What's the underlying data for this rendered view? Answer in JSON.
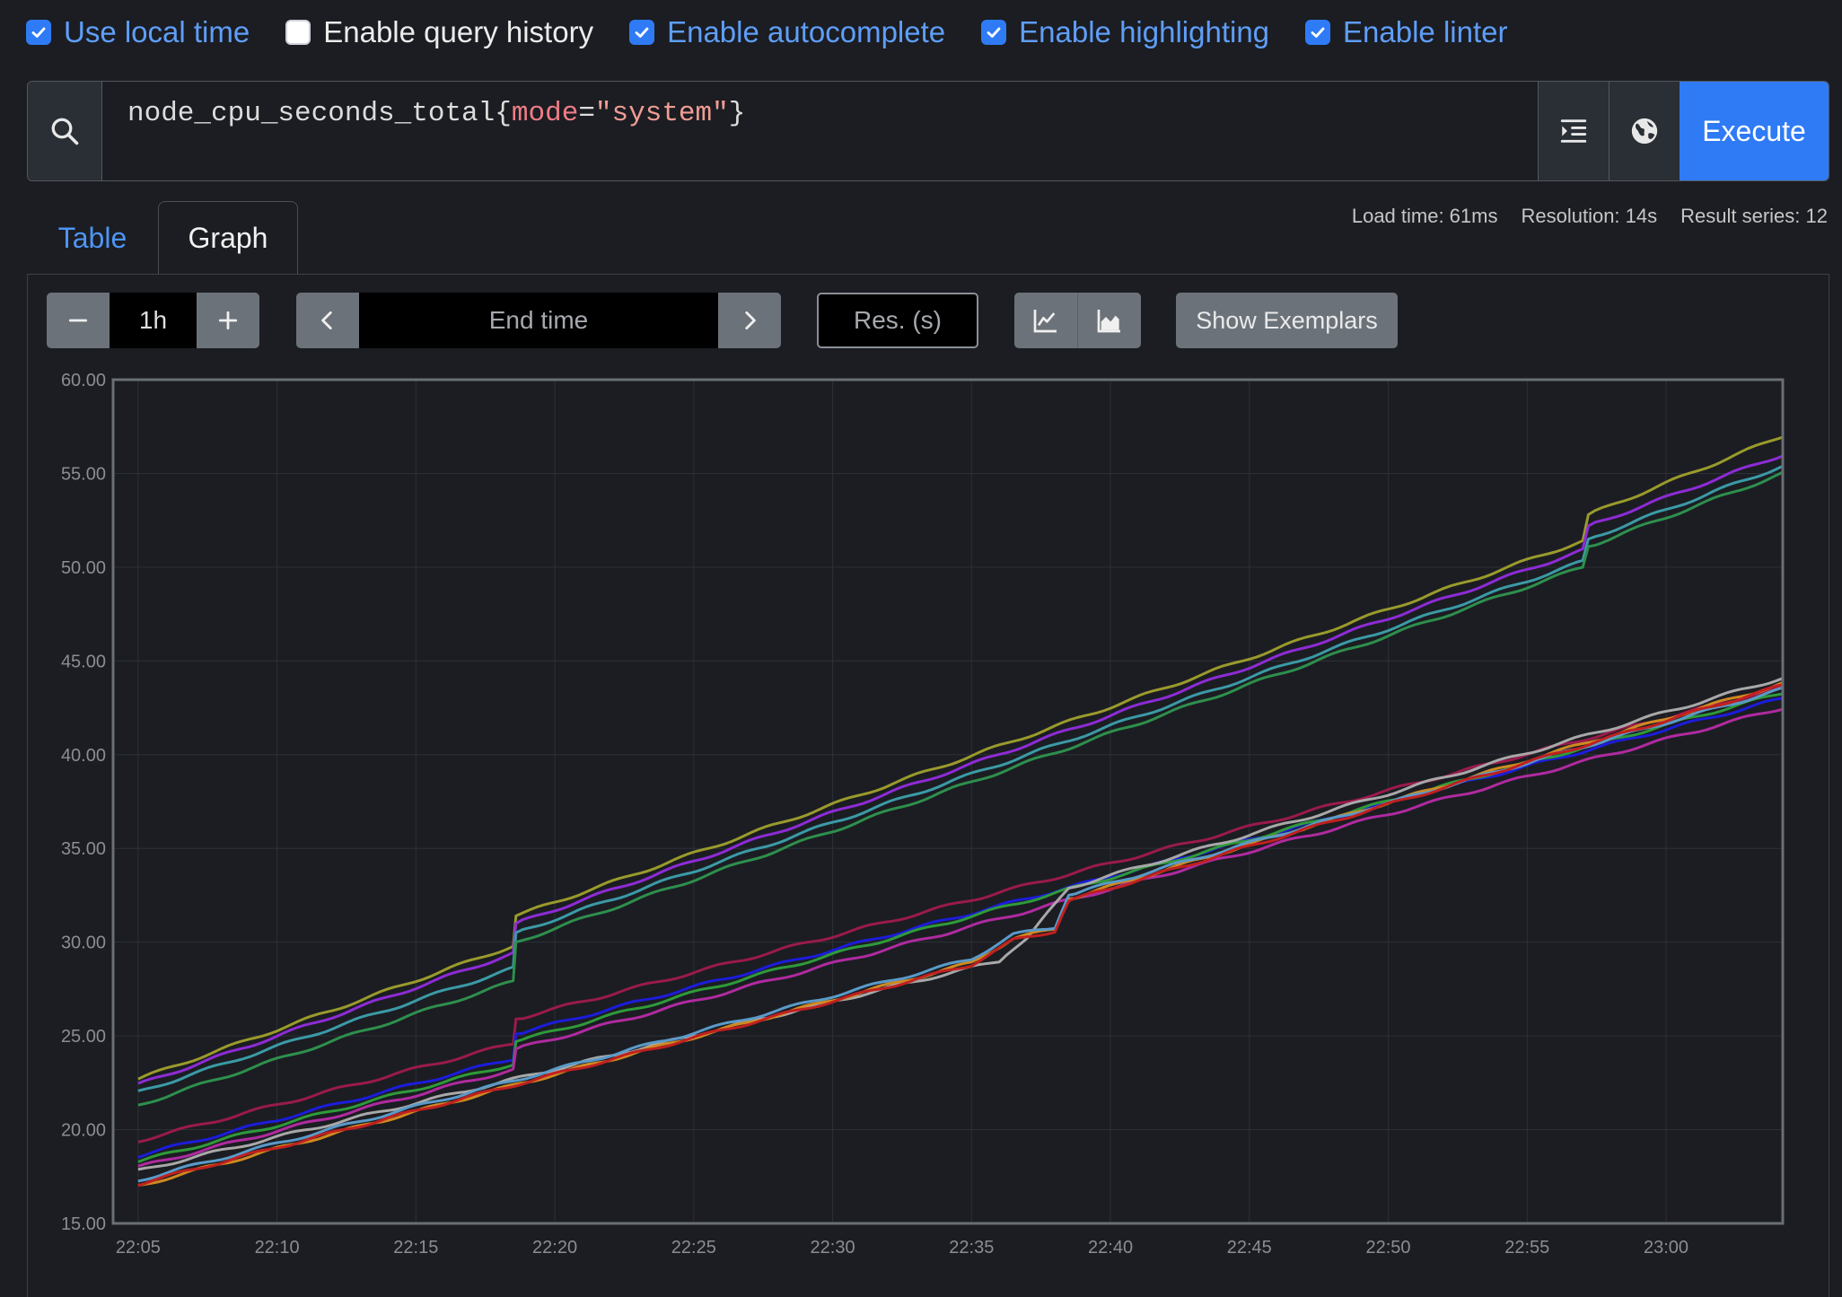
{
  "options": [
    {
      "label": "Use local time",
      "checked": true
    },
    {
      "label": "Enable query history",
      "checked": false
    },
    {
      "label": "Enable autocomplete",
      "checked": true
    },
    {
      "label": "Enable highlighting",
      "checked": true
    },
    {
      "label": "Enable linter",
      "checked": true
    }
  ],
  "query": {
    "metric": "node_cpu_seconds_total",
    "open": "{",
    "label_name": "mode",
    "eq": "=",
    "label_value": "\"system\"",
    "close": "}",
    "execute_label": "Execute"
  },
  "icons": {
    "search": "search-icon",
    "format": "format-indent-icon",
    "metrics_explorer": "globe-icon",
    "zoom_out": "minus-icon",
    "zoom_in": "plus-icon",
    "prev": "chevron-left-icon",
    "next": "chevron-right-icon",
    "line": "line-chart-icon",
    "stacked": "area-chart-icon"
  },
  "tabs": {
    "table": "Table",
    "graph": "Graph",
    "active": "Graph"
  },
  "stats": {
    "load_time": "Load time: 61ms",
    "resolution": "Resolution: 14s",
    "result_series": "Result series: 12"
  },
  "toolbar": {
    "range": "1h",
    "end_time_placeholder": "End time",
    "res_placeholder": "Res. (s)",
    "show_exemplars": "Show Exemplars"
  },
  "colors": {
    "accent": "#2f7bf5",
    "background": "#1b1d22",
    "toolbar_button": "#6c7279"
  },
  "chart_data": {
    "type": "line",
    "x_ticks": [
      "22:05",
      "22:10",
      "22:15",
      "22:20",
      "22:25",
      "22:30",
      "22:35",
      "22:40",
      "22:45",
      "22:50",
      "22:55",
      "23:00"
    ],
    "y_ticks": [
      "15.00",
      "20.00",
      "25.00",
      "30.00",
      "35.00",
      "40.00",
      "45.00",
      "50.00",
      "55.00",
      "60.00"
    ],
    "ylim": [
      15,
      60
    ],
    "xlim_minutes": [
      -0.9,
      59.2
    ],
    "grid": true,
    "series": [
      {
        "color": "#9a9a2c",
        "points": [
          [
            0,
            22.7
          ],
          [
            13.5,
            29.8
          ],
          [
            13.6,
            31.4
          ],
          [
            52,
            51.4
          ],
          [
            52.2,
            52.8
          ],
          [
            59.2,
            57.0
          ]
        ]
      },
      {
        "color": "#8e2bd6",
        "points": [
          [
            0,
            22.4
          ],
          [
            13.5,
            29.4
          ],
          [
            13.6,
            31.0
          ],
          [
            52,
            50.9
          ],
          [
            52.2,
            52.2
          ],
          [
            59.2,
            56.0
          ]
        ]
      },
      {
        "color": "#3b9aa6",
        "points": [
          [
            0,
            22.0
          ],
          [
            13.5,
            28.6
          ],
          [
            13.6,
            30.5
          ],
          [
            52,
            50.3
          ],
          [
            52.2,
            51.5
          ],
          [
            59.2,
            55.4
          ]
        ]
      },
      {
        "color": "#2e8f4d",
        "points": [
          [
            0,
            21.3
          ],
          [
            13.5,
            27.9
          ],
          [
            13.6,
            30.0
          ],
          [
            52,
            50.0
          ],
          [
            52.2,
            51.1
          ],
          [
            59.2,
            55.0
          ]
        ]
      },
      {
        "color": "#9a1a4d",
        "points": [
          [
            0,
            19.4
          ],
          [
            13.5,
            24.6
          ],
          [
            13.6,
            25.9
          ],
          [
            59.2,
            43.6
          ]
        ]
      },
      {
        "color": "#1c1cdc",
        "points": [
          [
            0,
            18.6
          ],
          [
            13.5,
            23.8
          ],
          [
            13.6,
            25.1
          ],
          [
            59.2,
            43.0
          ]
        ]
      },
      {
        "color": "#2e9a3a",
        "points": [
          [
            0,
            18.3
          ],
          [
            13.5,
            23.5
          ],
          [
            13.6,
            24.7
          ],
          [
            59.2,
            43.3
          ]
        ]
      },
      {
        "color": "#b02aa0",
        "points": [
          [
            0,
            18.0
          ],
          [
            13.5,
            23.2
          ],
          [
            13.6,
            24.3
          ],
          [
            59.2,
            42.5
          ]
        ]
      },
      {
        "color": "#a8a8a8",
        "points": [
          [
            0,
            17.8
          ],
          [
            31.0,
            29.0
          ],
          [
            32.0,
            30.2
          ],
          [
            33.5,
            32.9
          ],
          [
            59.2,
            44.1
          ]
        ]
      },
      {
        "color": "#d08a20",
        "points": [
          [
            0,
            17.0
          ],
          [
            30.0,
            28.9
          ],
          [
            31.5,
            30.2
          ],
          [
            33.0,
            30.7
          ],
          [
            33.5,
            32.3
          ],
          [
            59.2,
            43.8
          ]
        ]
      },
      {
        "color": "#5a9ac8",
        "points": [
          [
            0,
            17.3
          ],
          [
            30.0,
            29.1
          ],
          [
            31.5,
            30.4
          ],
          [
            33.0,
            30.8
          ],
          [
            33.5,
            32.5
          ],
          [
            59.2,
            43.5
          ]
        ]
      },
      {
        "color": "#c02020",
        "points": [
          [
            0,
            17.1
          ],
          [
            30.0,
            28.8
          ],
          [
            31.5,
            30.1
          ],
          [
            33.0,
            30.6
          ],
          [
            33.5,
            32.2
          ],
          [
            59.2,
            43.7
          ]
        ]
      }
    ]
  }
}
